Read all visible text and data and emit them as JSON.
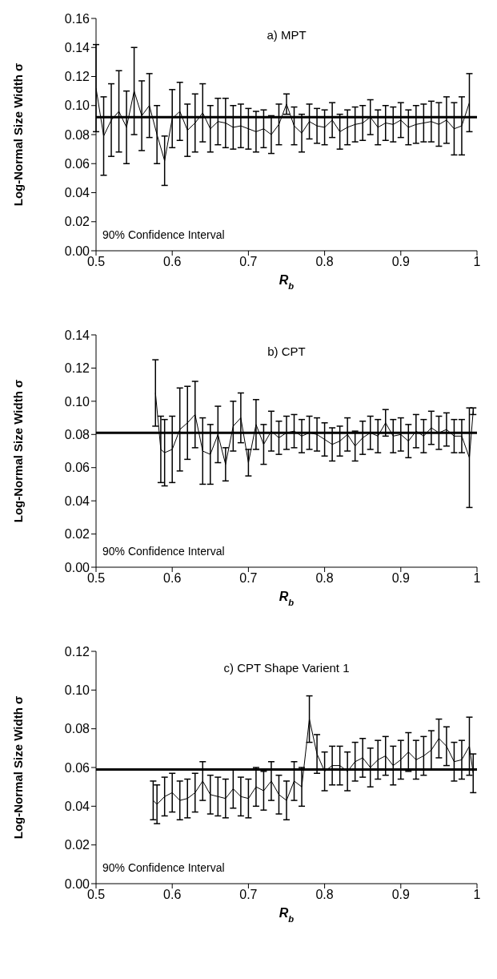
{
  "chart_data": [
    {
      "type": "line",
      "title": "a) MPT",
      "xlabel": "R$_{b}$",
      "ylabel": "Log-Normal Size Width σ",
      "annotations": [
        "90% Confidence Interval"
      ],
      "xlim": [
        0.5,
        1
      ],
      "xticks": [
        0.5,
        0.6,
        0.7,
        0.8,
        0.9,
        1
      ],
      "ylim": [
        0,
        0.16
      ],
      "yticks": [
        {
          "value": 0,
          "label": "0.00"
        },
        {
          "value": 0.02,
          "label": "0.02"
        },
        {
          "value": 0.04,
          "label": "0.04"
        },
        {
          "value": 0.06,
          "label": "0.06"
        },
        {
          "value": 0.08,
          "label": "0.08"
        },
        {
          "value": 0.1,
          "label": "0.10"
        },
        {
          "value": 0.12,
          "label": "0.12"
        },
        {
          "value": 0.14,
          "label": "0.14"
        },
        {
          "value": 0.16,
          "label": "0.16"
        }
      ],
      "grid": false,
      "ref_lines": [
        {
          "axis": "y",
          "value": 0.092,
          "color": "#000000"
        }
      ],
      "x": [
        0.5,
        0.51,
        0.52,
        0.53,
        0.54,
        0.55,
        0.56,
        0.57,
        0.58,
        0.59,
        0.6,
        0.61,
        0.62,
        0.63,
        0.64,
        0.65,
        0.66,
        0.67,
        0.68,
        0.69,
        0.7,
        0.71,
        0.72,
        0.73,
        0.74,
        0.75,
        0.76,
        0.77,
        0.78,
        0.79,
        0.8,
        0.81,
        0.82,
        0.83,
        0.84,
        0.85,
        0.86,
        0.87,
        0.88,
        0.89,
        0.9,
        0.91,
        0.92,
        0.93,
        0.94,
        0.95,
        0.96,
        0.97,
        0.98,
        0.99
      ],
      "series": [
        {
          "color": "#000000",
          "values": [
            0.112,
            0.079,
            0.09,
            0.096,
            0.085,
            0.11,
            0.093,
            0.1,
            0.08,
            0.062,
            0.091,
            0.096,
            0.083,
            0.088,
            0.095,
            0.084,
            0.089,
            0.088,
            0.085,
            0.086,
            0.084,
            0.082,
            0.084,
            0.08,
            0.087,
            0.101,
            0.086,
            0.081,
            0.089,
            0.086,
            0.085,
            0.09,
            0.082,
            0.085,
            0.087,
            0.088,
            0.092,
            0.085,
            0.088,
            0.087,
            0.09,
            0.085,
            0.087,
            0.088,
            0.089,
            0.087,
            0.09,
            0.084,
            0.086,
            0.102
          ],
          "errors": [
            0.03,
            0.027,
            0.025,
            0.028,
            0.025,
            0.03,
            0.024,
            0.022,
            0.02,
            0.017,
            0.02,
            0.02,
            0.018,
            0.02,
            0.02,
            0.016,
            0.016,
            0.017,
            0.015,
            0.015,
            0.014,
            0.014,
            0.013,
            0.013,
            0.014,
            0.007,
            0.013,
            0.013,
            0.012,
            0.012,
            0.012,
            0.012,
            0.012,
            0.012,
            0.012,
            0.012,
            0.012,
            0.012,
            0.012,
            0.012,
            0.012,
            0.012,
            0.013,
            0.013,
            0.014,
            0.015,
            0.016,
            0.018,
            0.02,
            0.02
          ]
        }
      ]
    },
    {
      "type": "line",
      "title": "b) CPT",
      "xlabel": "R$_{b}$",
      "ylabel": "Log-Normal Size Width σ",
      "annotations": [
        "90% Confidence Interval"
      ],
      "xlim": [
        0.5,
        1
      ],
      "xticks": [
        0.5,
        0.6,
        0.7,
        0.8,
        0.9,
        1
      ],
      "ylim": [
        0,
        0.14
      ],
      "yticks": [
        {
          "value": 0,
          "label": "0.00"
        },
        {
          "value": 0.02,
          "label": "0.02"
        },
        {
          "value": 0.04,
          "label": "0.04"
        },
        {
          "value": 0.06,
          "label": "0.06"
        },
        {
          "value": 0.08,
          "label": "0.08"
        },
        {
          "value": 0.1,
          "label": "0.10"
        },
        {
          "value": 0.12,
          "label": "0.12"
        },
        {
          "value": 0.14,
          "label": "0.14"
        }
      ],
      "grid": false,
      "ref_lines": [
        {
          "axis": "y",
          "value": 0.081,
          "color": "#000000"
        }
      ],
      "x": [
        0.578,
        0.585,
        0.59,
        0.6,
        0.61,
        0.62,
        0.63,
        0.64,
        0.65,
        0.66,
        0.67,
        0.68,
        0.69,
        0.7,
        0.71,
        0.72,
        0.73,
        0.74,
        0.75,
        0.76,
        0.77,
        0.78,
        0.79,
        0.8,
        0.81,
        0.82,
        0.83,
        0.84,
        0.85,
        0.86,
        0.87,
        0.88,
        0.89,
        0.9,
        0.91,
        0.92,
        0.93,
        0.94,
        0.95,
        0.96,
        0.97,
        0.98,
        0.99,
        0.995
      ],
      "series": [
        {
          "color": "#000000",
          "values": [
            0.105,
            0.071,
            0.069,
            0.071,
            0.083,
            0.087,
            0.092,
            0.07,
            0.068,
            0.08,
            0.062,
            0.085,
            0.09,
            0.063,
            0.086,
            0.074,
            0.082,
            0.078,
            0.081,
            0.082,
            0.079,
            0.081,
            0.08,
            0.077,
            0.074,
            0.076,
            0.08,
            0.073,
            0.078,
            0.081,
            0.079,
            0.087,
            0.079,
            0.08,
            0.076,
            0.082,
            0.079,
            0.084,
            0.081,
            0.083,
            0.079,
            0.079,
            0.066,
            0.094
          ],
          "errors": [
            0.02,
            0.02,
            0.02,
            0.02,
            0.025,
            0.022,
            0.02,
            0.02,
            0.018,
            0.017,
            0.01,
            0.015,
            0.015,
            0.008,
            0.015,
            0.012,
            0.012,
            0.01,
            0.01,
            0.01,
            0.01,
            0.01,
            0.01,
            0.01,
            0.01,
            0.009,
            0.01,
            0.009,
            0.01,
            0.01,
            0.01,
            0.008,
            0.01,
            0.01,
            0.01,
            0.01,
            0.01,
            0.01,
            0.01,
            0.01,
            0.01,
            0.01,
            0.03,
            0.002
          ]
        }
      ]
    },
    {
      "type": "line",
      "title": "c) CPT Shape Varient 1",
      "xlabel": "R$_{b}$",
      "ylabel": "Log-Normal Size Width σ",
      "annotations": [
        "90% Confidence Interval"
      ],
      "xlim": [
        0.5,
        1
      ],
      "xticks": [
        0.5,
        0.6,
        0.7,
        0.8,
        0.9,
        1
      ],
      "ylim": [
        0,
        0.12
      ],
      "yticks": [
        {
          "value": 0,
          "label": "0.00"
        },
        {
          "value": 0.02,
          "label": "0.02"
        },
        {
          "value": 0.04,
          "label": "0.04"
        },
        {
          "value": 0.06,
          "label": "0.06"
        },
        {
          "value": 0.08,
          "label": "0.08"
        },
        {
          "value": 0.1,
          "label": "0.10"
        },
        {
          "value": 0.12,
          "label": "0.12"
        }
      ],
      "grid": false,
      "ref_lines": [
        {
          "axis": "y",
          "value": 0.059,
          "color": "#000000"
        }
      ],
      "x": [
        0.575,
        0.58,
        0.59,
        0.6,
        0.61,
        0.62,
        0.63,
        0.64,
        0.65,
        0.66,
        0.67,
        0.68,
        0.69,
        0.7,
        0.71,
        0.72,
        0.73,
        0.74,
        0.75,
        0.76,
        0.77,
        0.78,
        0.79,
        0.8,
        0.81,
        0.82,
        0.83,
        0.84,
        0.85,
        0.86,
        0.87,
        0.88,
        0.89,
        0.9,
        0.91,
        0.92,
        0.93,
        0.94,
        0.95,
        0.96,
        0.97,
        0.98,
        0.99,
        0.995
      ],
      "series": [
        {
          "color": "#000000",
          "values": [
            0.043,
            0.041,
            0.045,
            0.047,
            0.043,
            0.044,
            0.047,
            0.053,
            0.046,
            0.045,
            0.044,
            0.049,
            0.045,
            0.044,
            0.05,
            0.048,
            0.053,
            0.046,
            0.043,
            0.053,
            0.05,
            0.085,
            0.067,
            0.058,
            0.061,
            0.061,
            0.058,
            0.063,
            0.065,
            0.06,
            0.064,
            0.066,
            0.061,
            0.064,
            0.068,
            0.064,
            0.066,
            0.069,
            0.075,
            0.071,
            0.063,
            0.064,
            0.071,
            0.057
          ],
          "errors": [
            0.01,
            0.01,
            0.01,
            0.01,
            0.01,
            0.01,
            0.01,
            0.01,
            0.01,
            0.01,
            0.01,
            0.01,
            0.01,
            0.01,
            0.01,
            0.01,
            0.01,
            0.01,
            0.01,
            0.01,
            0.01,
            0.012,
            0.01,
            0.01,
            0.01,
            0.01,
            0.01,
            0.01,
            0.01,
            0.01,
            0.01,
            0.01,
            0.01,
            0.01,
            0.01,
            0.01,
            0.01,
            0.01,
            0.01,
            0.01,
            0.01,
            0.01,
            0.015,
            0.01
          ]
        }
      ]
    }
  ]
}
